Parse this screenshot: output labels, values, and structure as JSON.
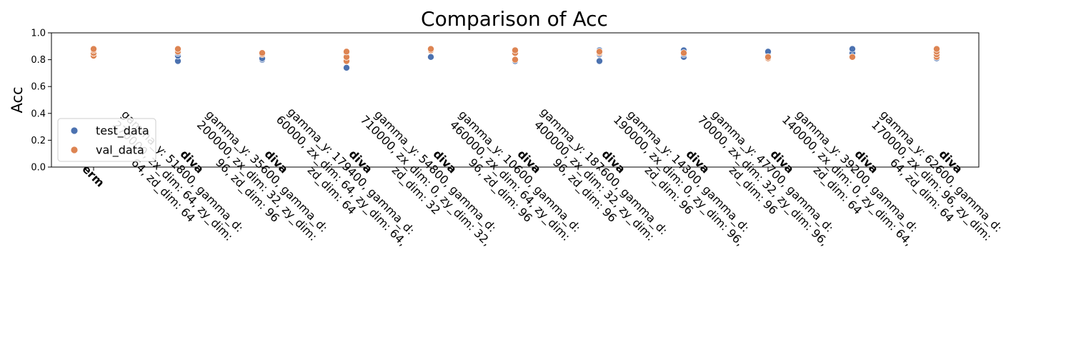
{
  "chart_data": {
    "type": "scatter",
    "title": "Comparison of Acc",
    "xlabel": "",
    "ylabel": "Acc",
    "ylim": [
      0.0,
      1.0
    ],
    "yticks": [
      "0.0",
      "0.2",
      "0.4",
      "0.6",
      "0.8",
      "1.0"
    ],
    "grid": false,
    "legend": {
      "placement": "lower-left",
      "entries": [
        "test_data",
        "val_data"
      ]
    },
    "colors": {
      "test_data": "#4c72b0",
      "val_data": "#dd8452"
    },
    "categories": [
      {
        "bold": "erm",
        "lines": []
      },
      {
        "bold": "diva",
        "lines": [
          "gamma_y: 51800, gamma_d:",
          "270000, zx_dim: 64, zy_dim:",
          "64, zd_dim: 64"
        ]
      },
      {
        "bold": "diva",
        "lines": [
          "gamma_y: 35600, gamma_d:",
          "200000, zx_dim: 32, zy_dim:",
          "96, zd_dim: 96"
        ]
      },
      {
        "bold": "diva",
        "lines": [
          "gamma_y: 179400, gamma_d:",
          "60000, zx_dim: 64, zy_dim: 64,",
          "zd_dim: 64"
        ]
      },
      {
        "bold": "diva",
        "lines": [
          "gamma_y: 54800, gamma_d:",
          "710000, zx_dim: 0, zy_dim: 32,",
          "zd_dim: 32"
        ]
      },
      {
        "bold": "diva",
        "lines": [
          "gamma_y: 10600, gamma_d:",
          "460000, zx_dim: 64, zy_dim:",
          "96, zd_dim: 96"
        ]
      },
      {
        "bold": "diva",
        "lines": [
          "gamma_y: 187600, gamma_d:",
          "400000, zx_dim: 32, zy_dim:",
          "96, zd_dim: 96"
        ]
      },
      {
        "bold": "diva",
        "lines": [
          "gamma_y: 14300, gamma_d:",
          "190000, zx_dim: 0, zy_dim: 96,",
          "zd_dim: 96"
        ]
      },
      {
        "bold": "diva",
        "lines": [
          "gamma_y: 47700, gamma_d:",
          "70000, zx_dim: 32, zy_dim: 96,",
          "zd_dim: 96"
        ]
      },
      {
        "bold": "diva",
        "lines": [
          "gamma_y: 39200, gamma_d:",
          "140000, zx_dim: 0, zy_dim: 64,",
          "zd_dim: 64"
        ]
      },
      {
        "bold": "diva",
        "lines": [
          "gamma_y: 62600, gamma_d:",
          "170000, zx_dim: 96, zy_dim:",
          "64, zd_dim: 64"
        ]
      }
    ],
    "series": [
      {
        "name": "test_data",
        "points": [
          [
            0,
            0.84
          ],
          [
            0,
            0.86
          ],
          [
            1,
            0.79
          ],
          [
            1,
            0.83
          ],
          [
            1,
            0.85
          ],
          [
            1,
            0.86
          ],
          [
            1,
            0.87
          ],
          [
            2,
            0.8
          ],
          [
            2,
            0.81
          ],
          [
            3,
            0.74
          ],
          [
            3,
            0.79
          ],
          [
            3,
            0.82
          ],
          [
            3,
            0.85
          ],
          [
            4,
            0.82
          ],
          [
            5,
            0.79
          ],
          [
            5,
            0.8
          ],
          [
            5,
            0.86
          ],
          [
            6,
            0.79
          ],
          [
            6,
            0.84
          ],
          [
            6,
            0.86
          ],
          [
            6,
            0.87
          ],
          [
            7,
            0.82
          ],
          [
            7,
            0.84
          ],
          [
            7,
            0.86
          ],
          [
            7,
            0.87
          ],
          [
            8,
            0.85
          ],
          [
            8,
            0.86
          ],
          [
            9,
            0.85
          ],
          [
            9,
            0.88
          ],
          [
            10,
            0.81
          ],
          [
            10,
            0.83
          ]
        ]
      },
      {
        "name": "val_data",
        "points": [
          [
            0,
            0.83
          ],
          [
            0,
            0.85
          ],
          [
            0,
            0.87
          ],
          [
            0,
            0.88
          ],
          [
            1,
            0.86
          ],
          [
            1,
            0.88
          ],
          [
            2,
            0.84
          ],
          [
            2,
            0.85
          ],
          [
            3,
            0.79
          ],
          [
            3,
            0.82
          ],
          [
            3,
            0.86
          ],
          [
            4,
            0.87
          ],
          [
            4,
            0.88
          ],
          [
            5,
            0.8
          ],
          [
            5,
            0.85
          ],
          [
            5,
            0.87
          ],
          [
            6,
            0.85
          ],
          [
            6,
            0.86
          ],
          [
            7,
            0.85
          ],
          [
            8,
            0.81
          ],
          [
            8,
            0.82
          ],
          [
            9,
            0.82
          ],
          [
            10,
            0.82
          ],
          [
            10,
            0.84
          ],
          [
            10,
            0.86
          ],
          [
            10,
            0.88
          ]
        ]
      }
    ]
  }
}
